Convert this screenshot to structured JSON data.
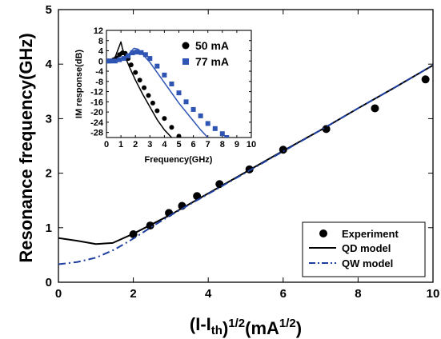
{
  "chart_data": [
    {
      "type": "scatter",
      "xlabel": "(I-I",
      "xlabel_sub": "th",
      "xlabel_sup": "1/2",
      "xlabel_unit": "(mA",
      "xlabel_unit_sup": "1/2",
      "xlabel_close": ")",
      "ylabel": "Resonance frequency(GHz)",
      "xlim": [
        0,
        10
      ],
      "ylim": [
        0,
        5
      ],
      "xticks": [
        "0",
        "2",
        "4",
        "6",
        "8",
        "10"
      ],
      "yticks": [
        "0",
        "1",
        "2",
        "3",
        "4",
        "5"
      ],
      "legend_position": "bottom-right",
      "series": [
        {
          "name": "Experiment",
          "kind": "points",
          "color": "#000000",
          "x": [
            2.0,
            2.45,
            2.95,
            3.3,
            3.7,
            4.3,
            5.1,
            6.0,
            7.15,
            8.45,
            9.8
          ],
          "y": [
            0.88,
            1.04,
            1.27,
            1.4,
            1.58,
            1.8,
            2.07,
            2.43,
            2.81,
            3.19,
            3.72
          ]
        },
        {
          "name": "QD model",
          "kind": "line",
          "color": "#000000",
          "x": [
            0,
            0.5,
            1.0,
            1.45,
            2.0,
            3.0,
            4.0,
            5.0,
            6.0,
            7.0,
            8.0,
            9.0,
            10.0
          ],
          "y": [
            0.81,
            0.76,
            0.7,
            0.72,
            0.89,
            1.24,
            1.63,
            2.02,
            2.41,
            2.79,
            3.19,
            3.58,
            3.98
          ]
        },
        {
          "name": "QW model",
          "kind": "dashdot",
          "color": "#1f3fa0",
          "x": [
            0,
            0.5,
            1.0,
            1.5,
            2.0,
            2.5,
            3.0,
            4.0,
            5.0,
            6.0,
            7.0,
            8.0,
            9.0,
            10.0
          ],
          "y": [
            0.33,
            0.37,
            0.45,
            0.6,
            0.8,
            1.02,
            1.23,
            1.62,
            2.01,
            2.4,
            2.79,
            3.19,
            3.58,
            3.98
          ]
        }
      ]
    },
    {
      "type": "line",
      "xlabel": "Frequency(GHz)",
      "ylabel": "IM response(dB)",
      "xlim": [
        0,
        10
      ],
      "ylim": [
        -30,
        12
      ],
      "xticks": [
        "0",
        "1",
        "2",
        "3",
        "4",
        "5",
        "6",
        "7",
        "8",
        "9",
        "10"
      ],
      "yticks": [
        "12",
        "8",
        "4",
        "0",
        "-4",
        "-8",
        "-12",
        "-16",
        "-20",
        "-24",
        "-28"
      ],
      "legend_position": "top-right",
      "series": [
        {
          "name": "50 mA",
          "kind": "points",
          "marker": "circle",
          "color": "#000000",
          "x": [
            0.1,
            0.3,
            0.5,
            0.7,
            0.9,
            1.1,
            1.3,
            1.5,
            1.7,
            2.0,
            2.3,
            2.6,
            2.9,
            3.2,
            3.5,
            4.0,
            4.5,
            5.0
          ],
          "y": [
            0,
            0,
            0.5,
            1.2,
            2.5,
            3.2,
            3.0,
            1.0,
            -1.5,
            -4.5,
            -7.5,
            -10.5,
            -13.5,
            -16.5,
            -19.5,
            -22.5,
            -26,
            -29.5
          ]
        },
        {
          "name": "",
          "kind": "line",
          "color": "#000000",
          "x": [
            0,
            0.3,
            0.6,
            0.8,
            1.0,
            1.1,
            1.3,
            1.6,
            2.0,
            2.5,
            3.0,
            3.5,
            4.0,
            4.5
          ],
          "y": [
            0,
            0.3,
            1.5,
            4.5,
            7.5,
            5.0,
            1.5,
            -2.5,
            -7.5,
            -13.0,
            -18.0,
            -23.0,
            -27.0,
            -30.0
          ]
        },
        {
          "name": "77 mA",
          "kind": "points",
          "marker": "square",
          "color": "#2f55b4",
          "x": [
            0.1,
            0.3,
            0.6,
            0.9,
            1.2,
            1.5,
            1.8,
            2.1,
            2.4,
            2.7,
            3.0,
            3.5,
            4.0,
            4.5,
            5.0,
            5.5,
            6.0,
            6.5,
            7.0,
            7.5,
            8.0,
            8.3
          ],
          "y": [
            0,
            0,
            0,
            0.5,
            1.0,
            2.0,
            3.2,
            3.5,
            3.3,
            2.5,
            1.0,
            -2.0,
            -5.5,
            -9.0,
            -12.5,
            -16.0,
            -19.0,
            -21.5,
            -24.5,
            -26.5,
            -28.5,
            -30.0
          ]
        },
        {
          "name": "",
          "kind": "line",
          "color": "#2f55b4",
          "x": [
            0,
            0.5,
            1.0,
            1.5,
            1.9,
            2.2,
            2.6,
            3.0,
            3.5,
            4.0,
            4.5,
            5.0,
            5.5,
            6.0,
            6.5,
            7.0
          ],
          "y": [
            0,
            0.2,
            0.8,
            2.5,
            5.0,
            4.6,
            2.0,
            -0.5,
            -4.5,
            -8.5,
            -12.5,
            -16.5,
            -20.0,
            -23.5,
            -27.0,
            -30.0
          ]
        }
      ]
    }
  ]
}
